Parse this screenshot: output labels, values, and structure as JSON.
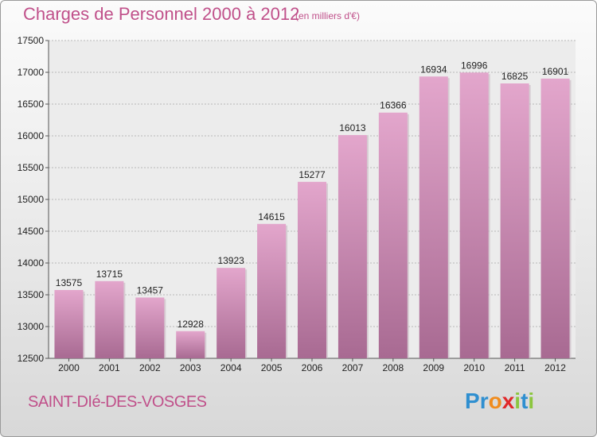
{
  "title": "Charges de Personnel 2000 à 2012",
  "unit_note": "(en milliers d'€)",
  "commune": "SAINT-DIé-DES-VOSGES",
  "logo": {
    "letters": [
      "P",
      "r",
      "o",
      "x",
      "i",
      "t",
      "i"
    ],
    "colors": [
      "#2f8fd0",
      "#2f8fd0",
      "#f08c1e",
      "#e0282a",
      "#8cc63f",
      "#2f8fd0",
      "#8cc63f"
    ]
  },
  "colors": {
    "bar_fill_top": "#e3a6cc",
    "bar_fill_bottom": "#a86a92",
    "text_accent": "#c0508a"
  },
  "chart_data": {
    "type": "bar",
    "title": "Charges de Personnel 2000 à 2012",
    "subtitle": "(en milliers d'€)",
    "xlabel": "",
    "ylabel": "",
    "categories": [
      "2000",
      "2001",
      "2002",
      "2003",
      "2004",
      "2005",
      "2006",
      "2007",
      "2008",
      "2009",
      "2010",
      "2011",
      "2012"
    ],
    "values": [
      13575,
      13715,
      13457,
      12928,
      13923,
      14615,
      15277,
      16013,
      16366,
      16934,
      16996,
      16825,
      16901
    ],
    "ylim": [
      12500,
      17500
    ],
    "yticks": [
      12500,
      13000,
      13500,
      14000,
      14500,
      15000,
      15500,
      16000,
      16500,
      17000,
      17500
    ],
    "grid": true,
    "legend": "none"
  }
}
